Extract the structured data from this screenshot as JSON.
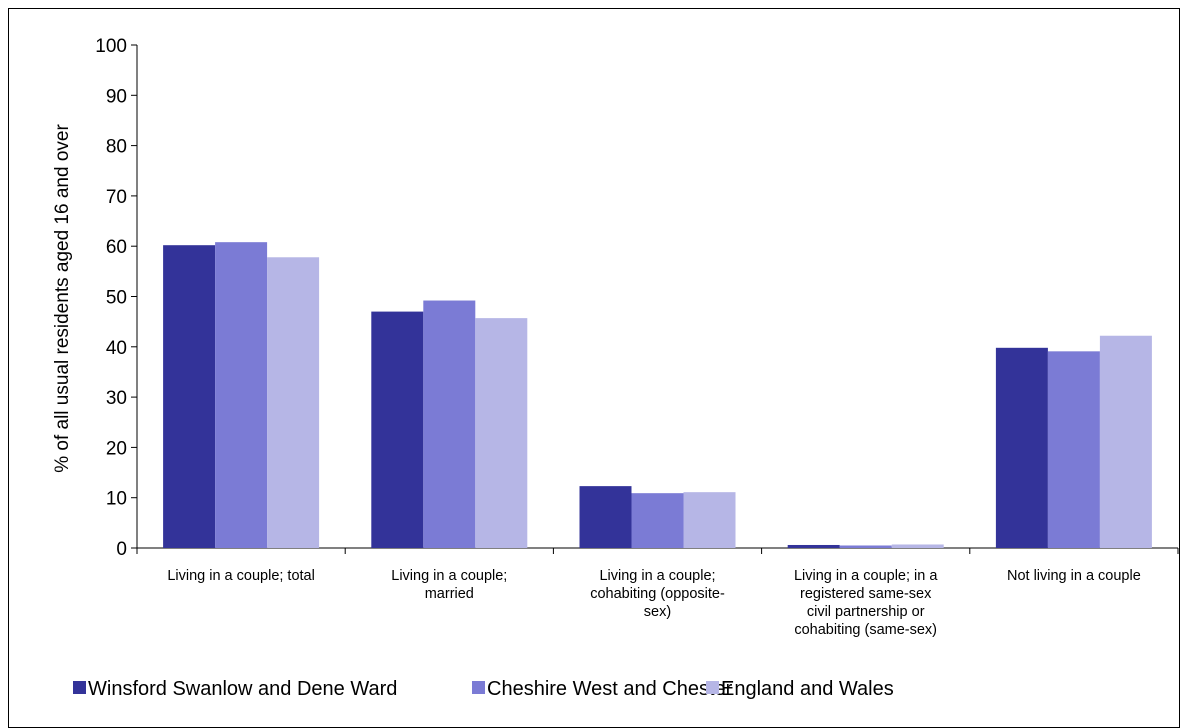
{
  "chart_data": {
    "type": "bar",
    "title": "",
    "xlabel": "",
    "ylabel": "% of all usual residents aged 16 and over",
    "ylim": [
      0,
      100
    ],
    "yticks": [
      0,
      10,
      20,
      30,
      40,
      50,
      60,
      70,
      80,
      90,
      100
    ],
    "grid": false,
    "legend_position": "bottom",
    "categories": [
      [
        "Living in a couple; total"
      ],
      [
        "Living in a couple;",
        "married"
      ],
      [
        "Living in a couple;",
        "cohabiting (opposite-",
        "sex)"
      ],
      [
        "Living in a couple; in a",
        "registered same-sex",
        "civil partnership or",
        "cohabiting (same-sex)"
      ],
      [
        "Not living in a couple"
      ]
    ],
    "series": [
      {
        "name": "Winsford Swanlow and Dene Ward",
        "color": "#333399",
        "values": [
          60.2,
          47.0,
          12.3,
          0.6,
          39.8
        ]
      },
      {
        "name": "Cheshire West and Chester",
        "color": "#7b7bd5",
        "values": [
          60.8,
          49.2,
          10.9,
          0.5,
          39.1
        ]
      },
      {
        "name": "England and Wales",
        "color": "#b6b6e6",
        "values": [
          57.8,
          45.7,
          11.1,
          0.7,
          42.2
        ]
      }
    ]
  }
}
